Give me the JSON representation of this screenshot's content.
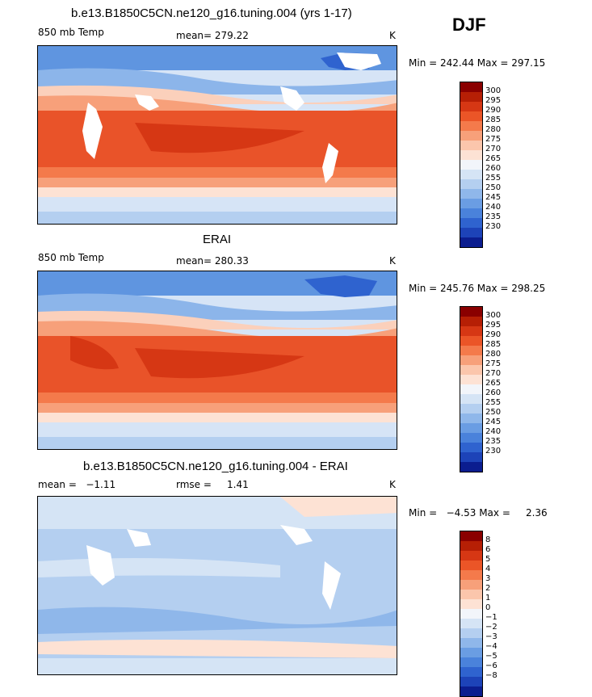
{
  "season": "DJF",
  "palette": {
    "warm": [
      "#8a0000",
      "#b61f05",
      "#d63714",
      "#eb5527",
      "#f47a4b",
      "#f7a07a",
      "#fbc6ac",
      "#fde2d4"
    ],
    "neutral": "#f2f5fa",
    "cool": [
      "#d5e4f5",
      "#b4cff0",
      "#8fb7ea",
      "#6a9de3",
      "#4a82db",
      "#2f63cf",
      "#1d43b8",
      "#0b1d8f"
    ],
    "ocean_warm": "#e95329",
    "ocean_cool": "#94b9e9"
  },
  "panels": [
    {
      "id": "model",
      "title": "b.e13.B1850C5CN.ne120_g16.tuning.004 (yrs 1-17)",
      "left_label": "850 mb Temp",
      "center_label": "mean= 279.22",
      "unit": "K",
      "minmax": "Min = 242.44 Max = 297.15",
      "legend_levels": [
        "300",
        "295",
        "290",
        "285",
        "280",
        "275",
        "270",
        "265",
        "260",
        "255",
        "250",
        "245",
        "240",
        "235",
        "230"
      ],
      "field_range": [
        242.44,
        297.15
      ]
    },
    {
      "id": "obs",
      "title": "ERAI",
      "left_label": "850 mb Temp",
      "center_label": "mean= 280.33",
      "unit": "K",
      "minmax": "Min = 245.76 Max = 298.25",
      "legend_levels": [
        "300",
        "295",
        "290",
        "285",
        "280",
        "275",
        "270",
        "265",
        "260",
        "255",
        "250",
        "245",
        "240",
        "235",
        "230"
      ],
      "field_range": [
        245.76,
        298.25
      ]
    },
    {
      "id": "diff",
      "title": "b.e13.B1850C5CN.ne120_g16.tuning.004 - ERAI",
      "left_label": "mean =   −1.11",
      "center_label": "rmse =     1.41",
      "unit": "K",
      "minmax": "Min =   −4.53 Max =     2.36",
      "legend_levels": [
        "8",
        "6",
        "5",
        "4",
        "3",
        "2",
        "1",
        "0",
        "−1",
        "−2",
        "−3",
        "−4",
        "−5",
        "−6",
        "−8"
      ],
      "field_range": [
        -4.53,
        2.36
      ]
    }
  ]
}
